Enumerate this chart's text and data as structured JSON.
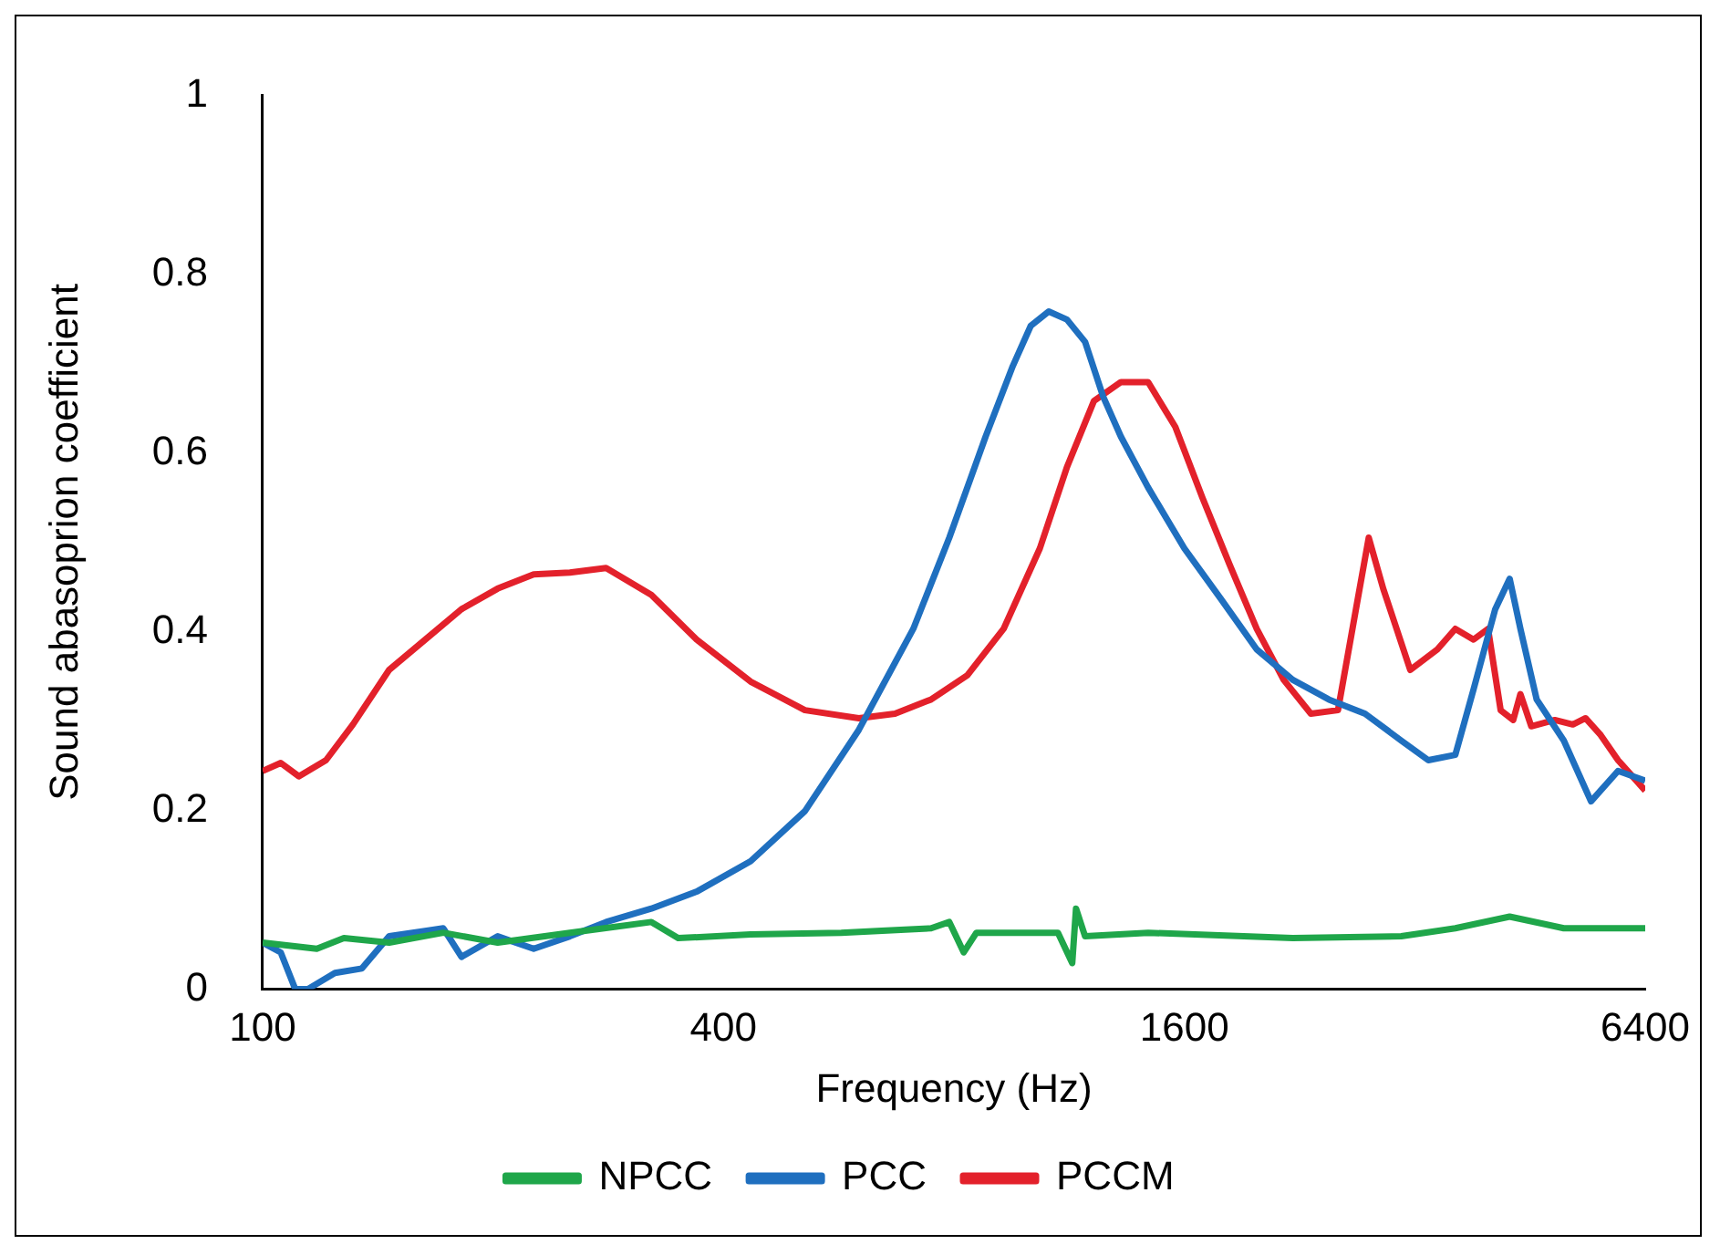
{
  "chart_data": {
    "type": "line",
    "xlabel": "Frequency (Hz)",
    "ylabel": "Sound abasoprion coefficient",
    "log": "x",
    "xlim": [
      100,
      6400
    ],
    "xticks": [
      100,
      400,
      1600,
      6400
    ],
    "ylim": [
      0,
      1
    ],
    "yticks": [
      0,
      0.2,
      0.4,
      0.6,
      0.8,
      1
    ],
    "grid": false,
    "legend": "bottom",
    "marker": "none",
    "line_style": "solid",
    "series": [
      {
        "name": "NPCC",
        "color": "#1fa64a",
        "x": [
          100,
          117.7,
          127.7,
          146.3,
          172.2,
          202.8,
          252,
          322,
          349,
          434,
          570,
          747,
          789,
          824,
          856,
          1094,
          1142,
          1155,
          1187,
          1435,
          2217,
          3072,
          3615,
          4257,
          5010,
          6400
        ],
        "values": [
          0.052,
          0.045,
          0.057,
          0.052,
          0.063,
          0.052,
          0.063,
          0.075,
          0.057,
          0.061,
          0.063,
          0.068,
          0.075,
          0.041,
          0.063,
          0.063,
          0.029,
          0.09,
          0.059,
          0.063,
          0.057,
          0.059,
          0.068,
          0.081,
          0.068,
          0.068
        ]
      },
      {
        "name": "PCC",
        "color": "#1f6fbf",
        "x": [
          100,
          105.6,
          110.3,
          114.6,
          124.3,
          134.8,
          146.3,
          172.2,
          181.9,
          202.8,
          226,
          252,
          281,
          322,
          369,
          434,
          511,
          601,
          708,
          789,
          880,
          955,
          1008,
          1064,
          1124,
          1187,
          1253,
          1322,
          1435,
          1600,
          1784,
          1989,
          2217,
          2471,
          2755,
          3072,
          3333,
          3615,
          3818,
          4076,
          4257,
          4397,
          4617,
          5010,
          5437,
          5898,
          6400
        ],
        "values": [
          0.052,
          0.041,
          0,
          0,
          0.018,
          0.023,
          0.059,
          0.068,
          0.036,
          0.059,
          0.045,
          0.059,
          0.075,
          0.09,
          0.109,
          0.143,
          0.199,
          0.29,
          0.403,
          0.505,
          0.618,
          0.697,
          0.742,
          0.758,
          0.749,
          0.724,
          0.663,
          0.618,
          0.561,
          0.493,
          0.437,
          0.38,
          0.346,
          0.324,
          0.308,
          0.278,
          0.256,
          0.262,
          0.335,
          0.425,
          0.459,
          0.403,
          0.324,
          0.278,
          0.21,
          0.244,
          0.233
        ]
      },
      {
        "name": "PCCM",
        "color": "#e3212b",
        "x": [
          100,
          105.6,
          111.5,
          121,
          131.2,
          146.3,
          163.1,
          181.9,
          202.8,
          226,
          252,
          281,
          322,
          369,
          434,
          511,
          601,
          670,
          747,
          833,
          929,
          1036,
          1124,
          1219,
          1322,
          1435,
          1557,
          1689,
          1833,
          1989,
          2157,
          2341,
          2540,
          2681,
          2786,
          2910,
          3157,
          3425,
          3615,
          3818,
          3989,
          4143,
          4303,
          4397,
          4543,
          4876,
          5148,
          5348,
          5587,
          5898,
          6400
        ],
        "values": [
          0.244,
          0.253,
          0.238,
          0.256,
          0.296,
          0.357,
          0.391,
          0.425,
          0.448,
          0.464,
          0.466,
          0.471,
          0.441,
          0.391,
          0.344,
          0.312,
          0.303,
          0.308,
          0.324,
          0.351,
          0.403,
          0.493,
          0.584,
          0.658,
          0.679,
          0.679,
          0.629,
          0.55,
          0.475,
          0.403,
          0.346,
          0.308,
          0.312,
          0.425,
          0.505,
          0.448,
          0.357,
          0.38,
          0.403,
          0.391,
          0.403,
          0.312,
          0.301,
          0.33,
          0.294,
          0.301,
          0.296,
          0.303,
          0.285,
          0.256,
          0.222
        ]
      }
    ]
  }
}
